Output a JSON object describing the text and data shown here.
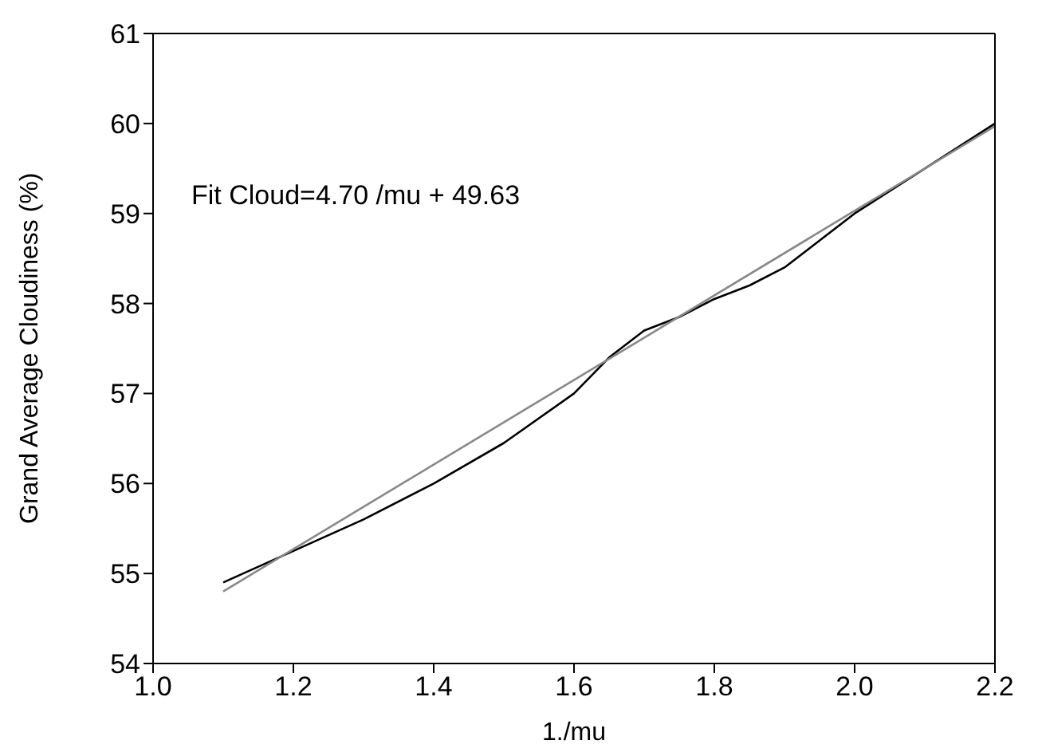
{
  "chart_data": {
    "type": "line",
    "xlabel": "1./mu",
    "ylabel": "Grand Average Cloudiness (%)",
    "annotations": [
      "Fit Cloud=4.70 /mu + 49.63"
    ],
    "xlim": [
      1.0,
      2.2
    ],
    "ylim": [
      54,
      61
    ],
    "xticks": [
      {
        "value": 1.0,
        "label": "1.0"
      },
      {
        "value": 1.2,
        "label": "1.2"
      },
      {
        "value": 1.4,
        "label": "1.4"
      },
      {
        "value": 1.6,
        "label": "1.6"
      },
      {
        "value": 1.8,
        "label": "1.8"
      },
      {
        "value": 2.0,
        "label": "2.0"
      },
      {
        "value": 2.2,
        "label": "2.2"
      }
    ],
    "yticks": [
      54,
      55,
      56,
      57,
      58,
      59,
      60,
      61
    ],
    "series": [
      {
        "color": "#000000",
        "x": [
          1.1,
          1.2,
          1.3,
          1.4,
          1.5,
          1.6,
          1.65,
          1.7,
          1.75,
          1.8,
          1.85,
          1.9,
          2.0,
          2.1,
          2.2
        ],
        "values": [
          54.9,
          55.25,
          55.6,
          56.0,
          56.45,
          57.0,
          57.4,
          57.7,
          57.85,
          58.05,
          58.2,
          58.4,
          59.0,
          59.5,
          60.0
        ]
      },
      {
        "type": "line",
        "color": "#888888",
        "x": [
          1.1,
          2.2
        ],
        "values": [
          54.8,
          59.97
        ]
      }
    ]
  }
}
